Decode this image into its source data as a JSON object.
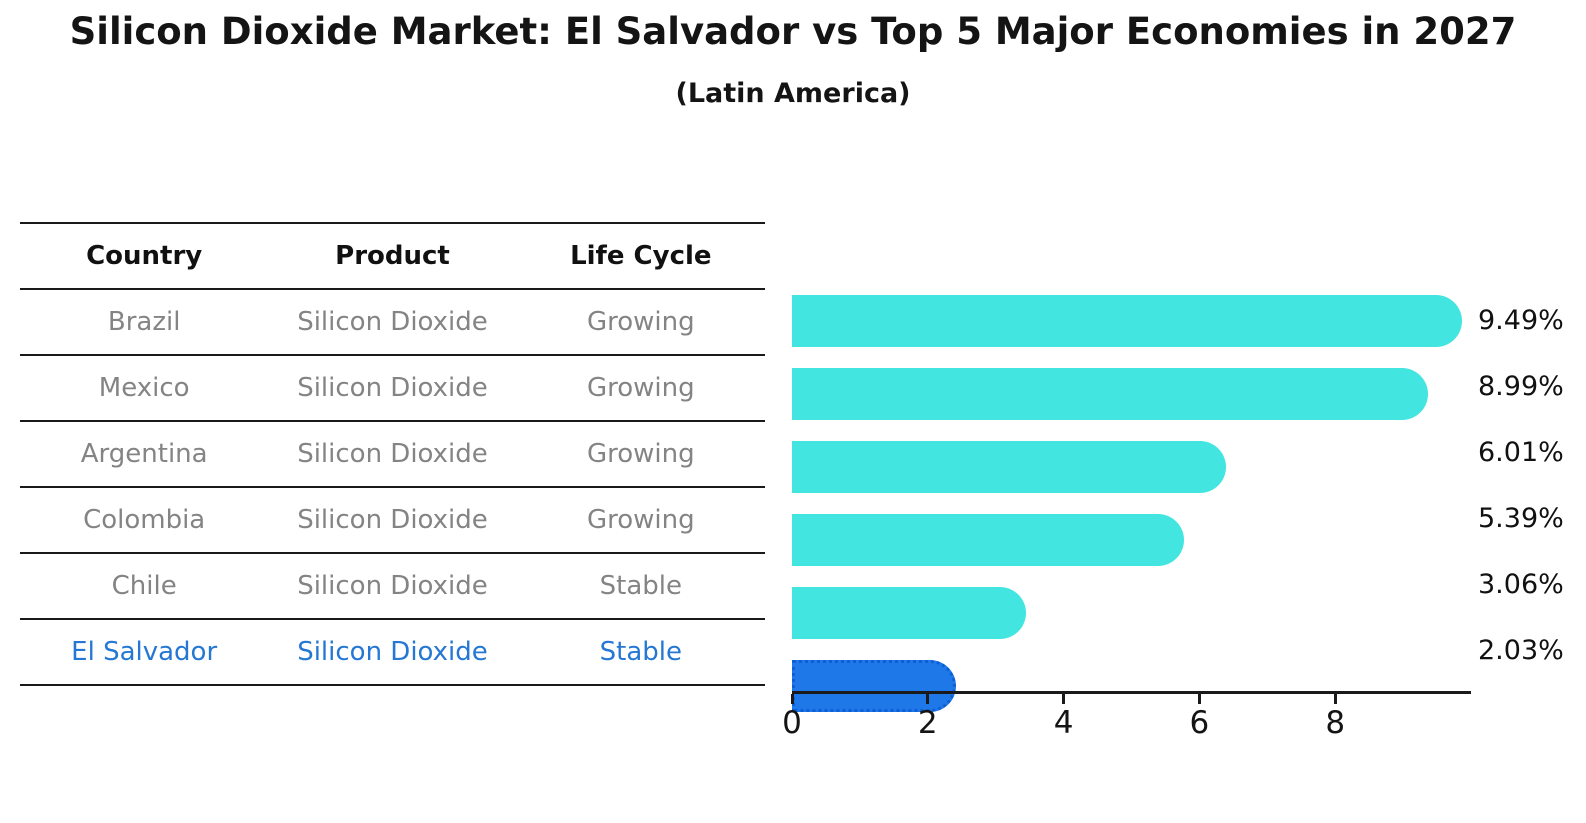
{
  "chart_data": {
    "type": "bar",
    "orientation": "horizontal",
    "title": "Silicon Dioxide Market: El Salvador vs Top 5 Major Economies in 2027",
    "subtitle": "(Latin America)",
    "categories": [
      "Brazil",
      "Mexico",
      "Argentina",
      "Colombia",
      "Chile",
      "El Salvador"
    ],
    "values": [
      9.49,
      8.99,
      6.01,
      5.39,
      3.06,
      2.03
    ],
    "value_labels": [
      "9.49%",
      "8.99%",
      "6.01%",
      "5.39%",
      "3.06%",
      "2.03%"
    ],
    "highlight_index": 5,
    "xticks": [
      "0",
      "2",
      "4",
      "6",
      "8"
    ],
    "xtick_values": [
      0,
      2,
      4,
      6,
      8
    ],
    "xlim": [
      0,
      10
    ],
    "xlabel": "",
    "ylabel": "",
    "grid": false,
    "legend": false
  },
  "table": {
    "headers": [
      "Country",
      "Product",
      "Life Cycle"
    ],
    "rows": [
      {
        "country": "Brazil",
        "product": "Silicon Dioxide",
        "life_cycle": "Growing",
        "highlight": false
      },
      {
        "country": "Mexico",
        "product": "Silicon Dioxide",
        "life_cycle": "Growing",
        "highlight": false
      },
      {
        "country": "Argentina",
        "product": "Silicon Dioxide",
        "life_cycle": "Growing",
        "highlight": false
      },
      {
        "country": "Colombia",
        "product": "Silicon Dioxide",
        "life_cycle": "Growing",
        "highlight": false
      },
      {
        "country": "Chile",
        "product": "Silicon Dioxide",
        "life_cycle": "Stable",
        "highlight": false
      },
      {
        "country": "El Salvador",
        "product": "Silicon Dioxide",
        "life_cycle": "Stable",
        "highlight": true
      }
    ]
  },
  "colors": {
    "bar-cyan": "#42E5E0",
    "bar-blue": "#1E78E8",
    "bar-blue-border": "#0D5FD6",
    "highlight-text": "#2478D4",
    "row-text": "#848484",
    "header-text": "#111111",
    "value-text": "#111111",
    "axis-line": "#1A1A1A"
  }
}
